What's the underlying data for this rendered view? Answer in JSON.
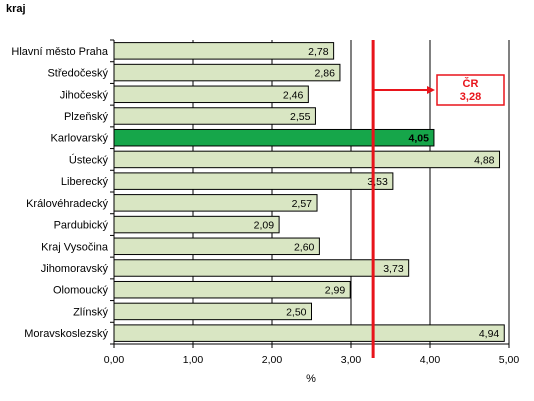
{
  "chart_data": {
    "type": "bar",
    "orientation": "horizontal",
    "header": "kraj",
    "xlabel": "%",
    "xlim": [
      0,
      5
    ],
    "xticks": [
      "0,00",
      "1,00",
      "2,00",
      "3,00",
      "4,00",
      "5,00"
    ],
    "categories": [
      "Hlavní město Praha",
      "Středočeský",
      "Jihočeský",
      "Plzeňský",
      "Karlovarský",
      "Ústecký",
      "Liberecký",
      "Královéhradecký",
      "Pardubický",
      "Kraj Vysočina",
      "Jihomoravský",
      "Olomoucký",
      "Zlínský",
      "Moravskoslezský"
    ],
    "values": [
      2.78,
      2.86,
      2.46,
      2.55,
      4.05,
      4.88,
      3.53,
      2.57,
      2.09,
      2.6,
      3.73,
      2.99,
      2.5,
      4.94
    ],
    "value_labels": [
      "2,78",
      "2,86",
      "2,46",
      "2,55",
      "4,05",
      "4,88",
      "3,53",
      "2,57",
      "2,09",
      "2,60",
      "3,73",
      "2,99",
      "2,50",
      "4,94"
    ],
    "highlight_index": 4,
    "bar_color": "#d9e6c3",
    "highlight_color": "#16a64a",
    "grid_vertical": true,
    "reference": {
      "label": "ČR",
      "value_label": "3,28",
      "value": 3.28,
      "color": "#e8141b"
    }
  }
}
